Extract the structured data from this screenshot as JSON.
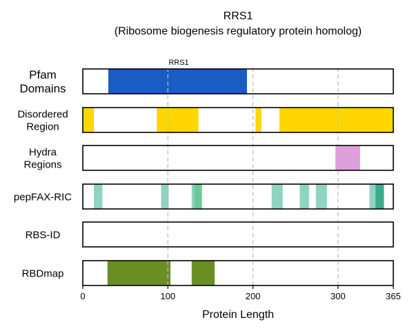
{
  "title": {
    "line1": "RRS1",
    "line2": "(Ribosome biogenesis regulatory protein homolog)"
  },
  "chart_data": {
    "type": "track",
    "protein_length": 365,
    "xlabel": "Protein Length",
    "x_ticks": [
      0,
      100,
      200,
      300,
      365
    ],
    "grid_x": [
      100,
      200,
      300
    ],
    "xlim": [
      0,
      365
    ],
    "tracks": [
      {
        "label_lines": [
          "Pfam",
          "Domains"
        ],
        "segments": [
          {
            "start": 30,
            "end": 193,
            "color": "#1a5bc4",
            "label": "RRS1"
          }
        ]
      },
      {
        "label_lines": [
          "Disordered",
          "Region"
        ],
        "segments": [
          {
            "start": 0,
            "end": 13,
            "color": "#ffd700"
          },
          {
            "start": 87,
            "end": 136,
            "color": "#ffd700"
          },
          {
            "start": 203,
            "end": 210,
            "color": "#ffd700"
          },
          {
            "start": 231,
            "end": 365,
            "color": "#ffd700"
          }
        ]
      },
      {
        "label_lines": [
          "Hydra",
          "Regions"
        ],
        "segments": [
          {
            "start": 297,
            "end": 326,
            "color": "#dda0dd"
          }
        ]
      },
      {
        "label_lines": [
          "pepFAX-RIC"
        ],
        "segments": [
          {
            "start": 13,
            "end": 23,
            "color": "#8fd3c1"
          },
          {
            "start": 92,
            "end": 101,
            "color": "#8fd3c1"
          },
          {
            "start": 128,
            "end": 131,
            "color": "#8fd3c1"
          },
          {
            "start": 131,
            "end": 140,
            "color": "#6dc99a"
          },
          {
            "start": 222,
            "end": 235,
            "color": "#8fd3c1"
          },
          {
            "start": 255,
            "end": 266,
            "color": "#8fd3c1"
          },
          {
            "start": 274,
            "end": 287,
            "color": "#8fd3c1"
          },
          {
            "start": 337,
            "end": 344,
            "color": "#8fd3c1"
          },
          {
            "start": 344,
            "end": 354,
            "color": "#3daa8c"
          }
        ]
      },
      {
        "label_lines": [
          "RBS-ID"
        ],
        "segments": []
      },
      {
        "label_lines": [
          "RBDmap"
        ],
        "segments": [
          {
            "start": 29,
            "end": 103,
            "color": "#6b8e23"
          },
          {
            "start": 128,
            "end": 155,
            "color": "#6b8e23"
          }
        ]
      }
    ]
  }
}
